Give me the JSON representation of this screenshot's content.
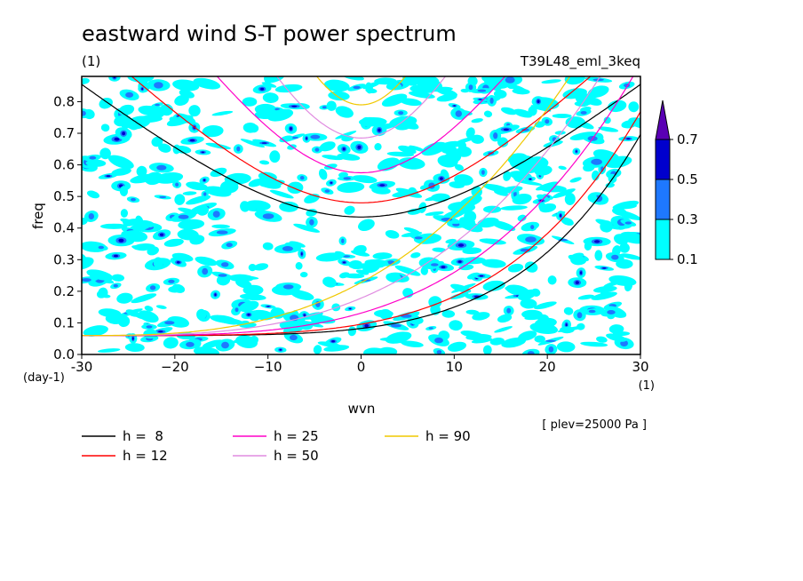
{
  "chart_data": {
    "type": "heatmap",
    "title": "eastward wind S-T power spectrum",
    "subtitle_left": "(1)",
    "subtitle_right": "T39L48_eml_3keq",
    "xlabel": "wvn",
    "ylabel": "freq",
    "x_unit": "(1)",
    "y_unit": "(day-1)",
    "xlim": [
      -30,
      30
    ],
    "ylim": [
      0.0,
      0.88
    ],
    "xticks": [
      -30,
      -20,
      -10,
      0,
      10,
      20,
      30
    ],
    "xtick_labels": [
      "-30",
      "−20",
      "−10",
      "0",
      "10",
      "20",
      "30"
    ],
    "yticks": [
      0.0,
      0.1,
      0.2,
      0.3,
      0.4,
      0.5,
      0.6,
      0.7,
      0.8
    ],
    "ytick_labels": [
      "0.0",
      "0.1",
      "0.2",
      "0.3",
      "0.4",
      "0.5",
      "0.6",
      "0.7",
      "0.8"
    ],
    "annotation": "[ plev=25000 Pa ]",
    "colorbar": {
      "levels": [
        "0.1",
        "0.3",
        "0.5",
        "0.7"
      ],
      "colors": [
        "#00ffff",
        "#1e78ff",
        "#0000cd",
        "#5a00b4"
      ],
      "extend": "max"
    },
    "dispersion_curves": [
      {
        "label": "h =  8",
        "h": 8,
        "color": "#000000",
        "eq_freq": 0.435
      },
      {
        "label": "h = 12",
        "h": 12,
        "color": "#ff0000",
        "eq_freq": 0.48
      },
      {
        "label": "h = 25",
        "h": 25,
        "color": "#ff00c8",
        "eq_freq": 0.575
      },
      {
        "label": "h = 50",
        "h": 50,
        "color": "#e08ce0",
        "eq_freq": 0.685
      },
      {
        "label": "h = 90",
        "h": 90,
        "color": "#f0c800",
        "eq_freq": 0.79
      }
    ]
  }
}
